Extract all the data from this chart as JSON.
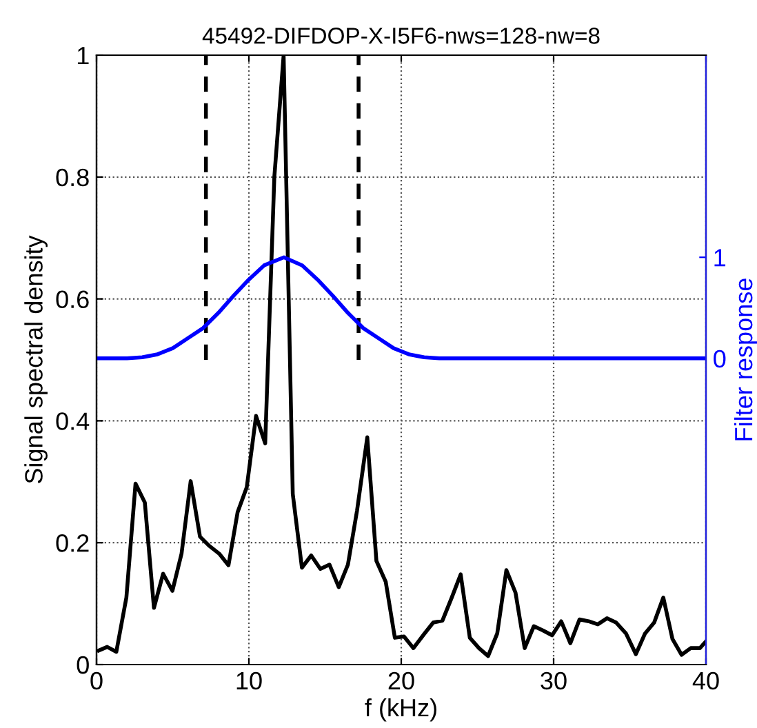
{
  "chart_data": {
    "type": "line",
    "title": "45492-DIFDOP-X-I5F6-nws=128-nw=8",
    "xlabel": "f (kHz)",
    "ylabel": "Signal spectral density",
    "y2label": "Filter response",
    "xlim": [
      0,
      40
    ],
    "xticks": [
      0,
      10,
      20,
      30,
      40
    ],
    "ylim": [
      0,
      1
    ],
    "yticks": [
      0,
      0.2,
      0.4,
      0.6,
      0.8,
      1
    ],
    "y2lim": [
      -3.03,
      3.0
    ],
    "y2ticks": [
      0,
      1
    ],
    "grid": true,
    "line_style": "solid",
    "marker": "none",
    "series": [
      {
        "color": "#000000",
        "x": [
          0.15,
          0.7,
          1.3,
          1.96,
          2.56,
          3.17,
          3.77,
          4.37,
          4.98,
          5.58,
          6.18,
          6.79,
          7.39,
          8.05,
          8.66,
          9.26,
          9.86,
          10.47,
          11.07,
          11.67,
          12.28,
          12.88,
          13.48,
          14.09,
          14.69,
          15.29,
          15.9,
          16.5,
          17.1,
          17.77,
          18.37,
          18.98,
          19.58,
          20.18,
          20.8,
          21.5,
          22.1,
          22.7,
          23.3,
          23.9,
          24.5,
          25.1,
          25.7,
          26.3,
          26.9,
          27.5,
          28.1,
          28.7,
          29.3,
          29.9,
          30.5,
          31.1,
          31.7,
          32.3,
          32.9,
          33.5,
          34.1,
          34.75,
          35.4,
          36.0,
          36.6,
          37.2,
          37.8,
          38.4,
          39.0,
          39.6,
          40.0
        ],
        "values": [
          0.023,
          0.029,
          0.021,
          0.11,
          0.297,
          0.266,
          0.093,
          0.149,
          0.121,
          0.182,
          0.301,
          0.21,
          0.195,
          0.182,
          0.163,
          0.25,
          0.291,
          0.408,
          0.363,
          0.8,
          1.0,
          0.28,
          0.159,
          0.179,
          0.157,
          0.164,
          0.127,
          0.164,
          0.253,
          0.373,
          0.17,
          0.136,
          0.044,
          0.046,
          0.027,
          0.05,
          0.069,
          0.072,
          0.109,
          0.148,
          0.044,
          0.027,
          0.014,
          0.051,
          0.155,
          0.118,
          0.027,
          0.063,
          0.056,
          0.048,
          0.071,
          0.035,
          0.074,
          0.071,
          0.066,
          0.076,
          0.069,
          0.051,
          0.017,
          0.051,
          0.069,
          0.11,
          0.042,
          0.016,
          0.027,
          0.027,
          0.038
        ]
      },
      {
        "color": "#0000ff",
        "axis": "y2",
        "x": [
          0,
          2,
          3,
          4,
          5,
          6,
          7,
          8,
          9,
          10,
          11,
          12.3,
          13.5,
          14.5,
          15.5,
          16.5,
          17.5,
          18.5,
          19.5,
          20.5,
          21.5,
          22.5,
          40
        ],
        "values": [
          0,
          0,
          0.01,
          0.04,
          0.1,
          0.2,
          0.3,
          0.45,
          0.62,
          0.78,
          0.92,
          1,
          0.92,
          0.78,
          0.62,
          0.45,
          0.3,
          0.2,
          0.1,
          0.04,
          0.01,
          0,
          0
        ]
      },
      {
        "color": "#000000",
        "line_style": "dashed",
        "x": [
          7.18,
          7.18
        ],
        "values": [
          0.5,
          1
        ]
      },
      {
        "color": "#000000",
        "line_style": "dashed",
        "x": [
          17.2,
          17.2
        ],
        "values": [
          0.5,
          1
        ]
      }
    ]
  }
}
